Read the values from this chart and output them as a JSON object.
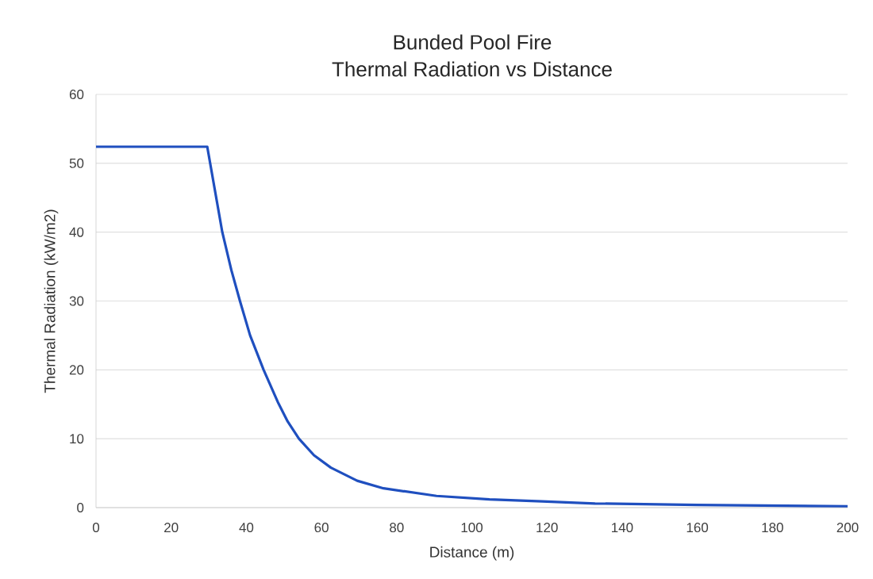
{
  "chart_data": {
    "type": "line",
    "title": "Bunded Pool Fire\nThermal Radiation vs Distance",
    "xlabel": "Distance (m)",
    "ylabel": "Thermal Radiation (kW/m2)",
    "x": [
      0,
      29.6,
      31.5,
      33.6,
      36,
      38.3,
      41,
      44.6,
      48.4,
      51,
      54,
      58,
      62.5,
      69.5,
      76.5,
      90.6,
      104.7,
      118.7,
      132.8,
      160,
      180,
      200
    ],
    "series": [
      {
        "color": "#1f4fbf",
        "values": [
          52.4,
          52.4,
          46.5,
          40,
          34.5,
          30,
          25,
          20,
          15.3,
          12.5,
          10,
          7.6,
          5.8,
          3.9,
          2.8,
          1.7,
          1.2,
          0.9,
          0.6,
          0.4,
          0.3,
          0.2
        ]
      }
    ],
    "xlim": [
      0,
      200
    ],
    "ylim": [
      0,
      60
    ],
    "xticks": [
      0,
      20,
      40,
      60,
      80,
      100,
      120,
      140,
      160,
      180,
      200
    ],
    "yticks": [
      0,
      10,
      20,
      30,
      40,
      50,
      60
    ],
    "grid": "y",
    "marker": "none",
    "line_style": "solid"
  }
}
